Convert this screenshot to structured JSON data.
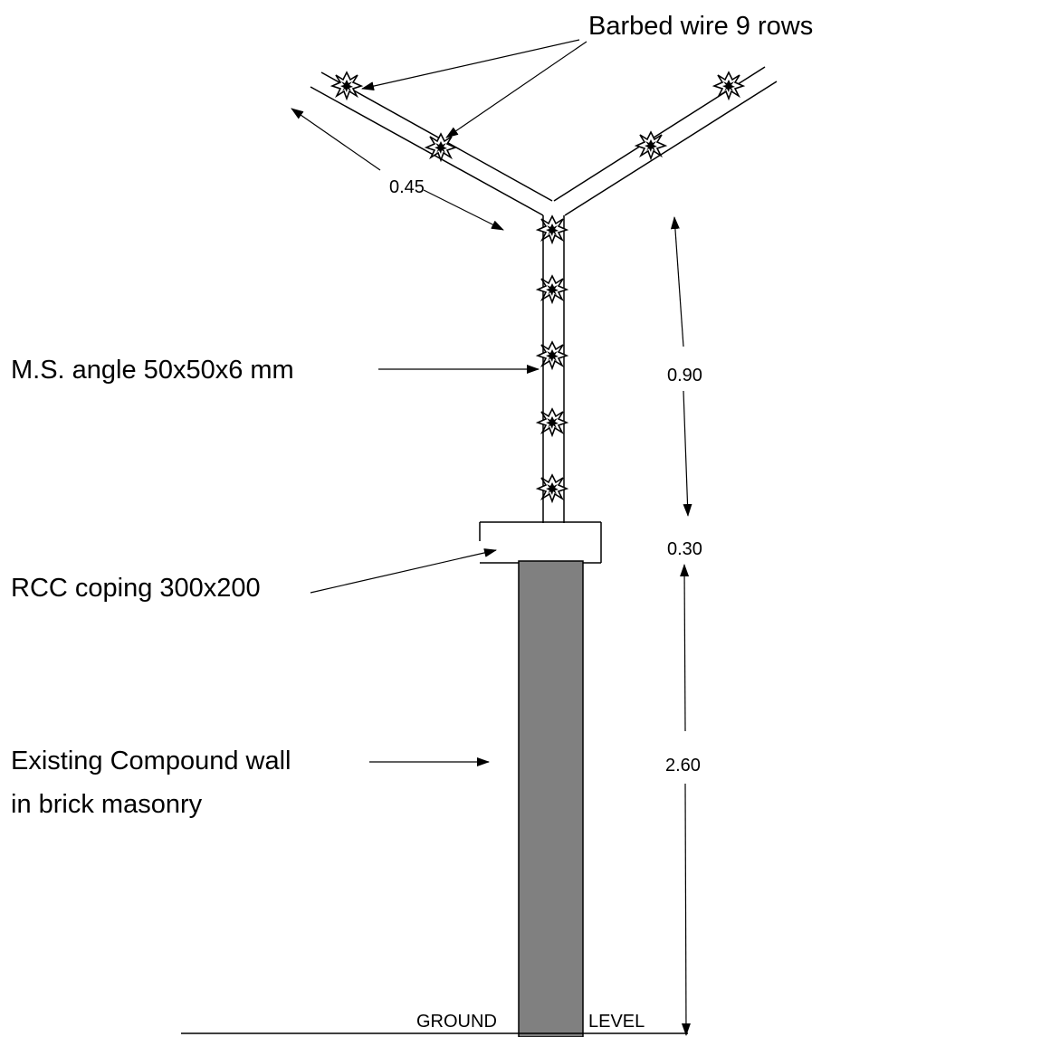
{
  "labels": {
    "barbed_wire": "Barbed wire 9 rows",
    "ms_angle": "M.S. angle 50x50x6 mm",
    "rcc_coping": "RCC coping 300x200",
    "wall_line1": "Existing Compound wall",
    "wall_line2": "in brick masonry",
    "ground": "GROUND",
    "level": "LEVEL"
  },
  "dimensions": {
    "arm_length": "0.45",
    "post_height": "0.90",
    "coping_height": "0.30",
    "wall_height": "2.60"
  },
  "colors": {
    "wall_fill": "#808080",
    "line": "#000000",
    "background": "#ffffff"
  },
  "icons": {
    "barb": "barbed-wire-star-icon"
  }
}
